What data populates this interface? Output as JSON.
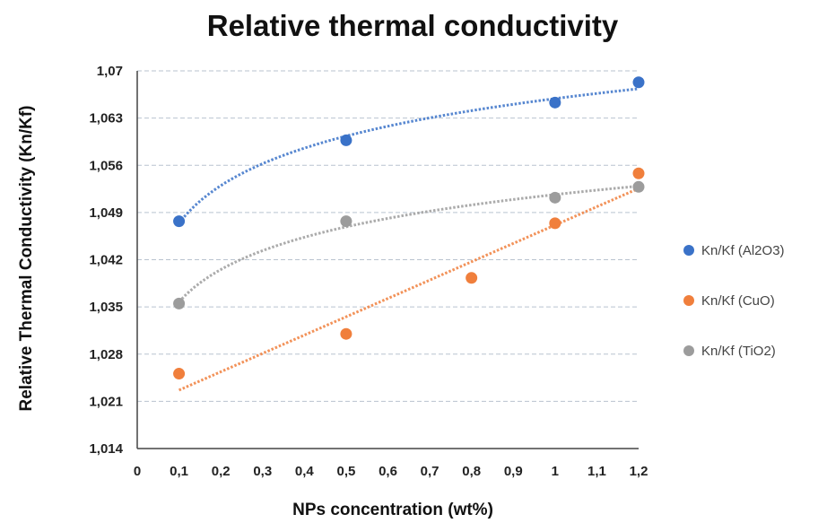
{
  "chart_data": {
    "type": "scatter",
    "title": "Relative thermal conductivity",
    "xlabel": "NPs concentration (wt%)",
    "ylabel": "Relative Thermal Conductivity (Kn/Kf)",
    "xlim": [
      0,
      1.2
    ],
    "ylim": [
      1.014,
      1.07
    ],
    "x_ticks": [
      "0",
      "0,1",
      "0,2",
      "0,3",
      "0,4",
      "0,5",
      "0,6",
      "0,7",
      "0,8",
      "0,9",
      "1",
      "1,1",
      "1,2"
    ],
    "y_ticks": [
      "1,014",
      "1,021",
      "1,028",
      "1,035",
      "1,042",
      "1,049",
      "1,056",
      "1,063",
      "1,07"
    ],
    "grid": "horizontal dashed",
    "legend_position": "right",
    "series": [
      {
        "name": "Kn/Kf (Al2O3)",
        "color": "#3a72c8",
        "x": [
          0.1,
          0.5,
          1.0,
          1.2
        ],
        "y": [
          1.0477,
          1.0597,
          1.0653,
          1.0683
        ],
        "trendline": "logarithmic",
        "trend_range": [
          0.1,
          1.2
        ]
      },
      {
        "name": "Kn/Kf (CuO)",
        "color": "#f07f3c",
        "x": [
          0.1,
          0.5,
          0.8,
          1.0,
          1.2
        ],
        "y": [
          1.0251,
          1.031,
          1.0393,
          1.0474,
          1.0548
        ],
        "trendline": "linear",
        "trend_range": [
          0.1,
          1.2
        ]
      },
      {
        "name": "Kn/Kf (TiO2)",
        "color": "#9c9c9c",
        "x": [
          0.1,
          0.5,
          1.0,
          1.2
        ],
        "y": [
          1.0355,
          1.0477,
          1.0512,
          1.0528
        ],
        "trendline": "logarithmic",
        "trend_range": [
          0.1,
          1.2
        ]
      }
    ]
  }
}
